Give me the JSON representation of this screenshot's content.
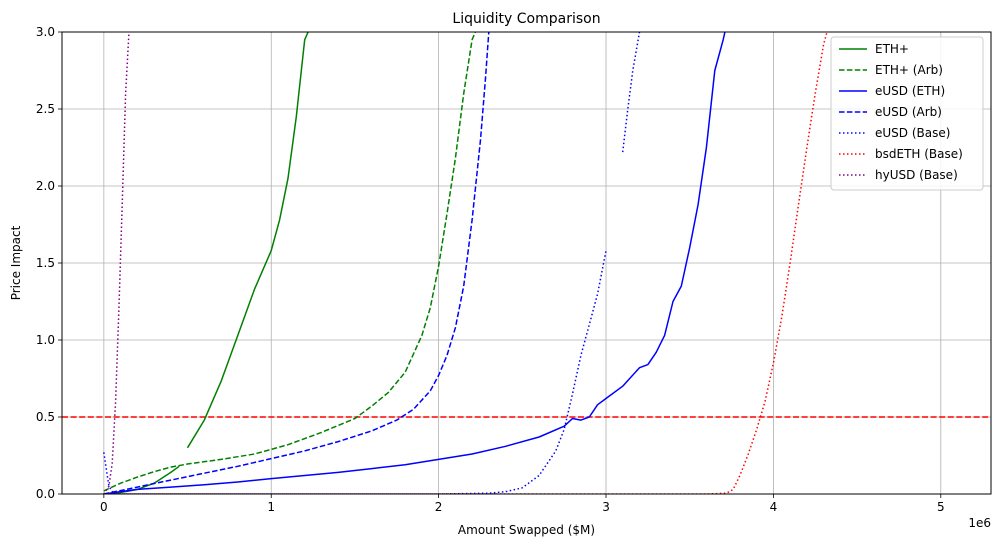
{
  "chart_data": {
    "type": "line",
    "title": "Liquidity Comparison",
    "xlabel": "Amount Swapped ($M)",
    "ylabel": "Price Impact",
    "x_offset_text": "1e6",
    "xlim": [
      -250000,
      5300000
    ],
    "ylim": [
      0,
      3.0
    ],
    "xticks": [
      0,
      1000000,
      2000000,
      3000000,
      4000000,
      5000000
    ],
    "xtick_labels": [
      "0",
      "1",
      "2",
      "3",
      "4",
      "5"
    ],
    "yticks": [
      0,
      0.5,
      1.0,
      1.5,
      2.0,
      2.5,
      3.0
    ],
    "ytick_labels": [
      "0.0",
      "0.5",
      "1.0",
      "1.5",
      "2.0",
      "2.5",
      "3.0"
    ],
    "grid": true,
    "legend_position": "top-right",
    "reference_line": {
      "y": 0.5,
      "color": "#ff0000",
      "style": "dashed"
    },
    "series": [
      {
        "name": "ETH+",
        "color": "#008000",
        "style": "solid",
        "segments": [
          {
            "x": [
              0,
              100000,
              200000,
              300000,
              400000,
              450000
            ],
            "y": [
              0,
              0.01,
              0.03,
              0.07,
              0.14,
              0.18
            ]
          },
          {
            "x": [
              500000,
              600000,
              700000,
              800000,
              900000,
              1000000,
              1050000,
              1100000,
              1150000,
              1200000,
              1220000
            ],
            "y": [
              0.3,
              0.48,
              0.73,
              1.03,
              1.33,
              1.58,
              1.78,
              2.05,
              2.45,
              2.95,
              3.0
            ]
          }
        ]
      },
      {
        "name": "ETH+ (Arb)",
        "color": "#008000",
        "style": "dashed",
        "segments": [
          {
            "x": [
              0,
              100000,
              200000,
              300000,
              400000,
              500000,
              700000,
              900000,
              1100000,
              1300000,
              1500000,
              1600000,
              1700000,
              1800000,
              1900000,
              1950000,
              2000000,
              2050000,
              2100000,
              2150000,
              2200000,
              2220000
            ],
            "y": [
              0.02,
              0.07,
              0.11,
              0.145,
              0.175,
              0.195,
              0.225,
              0.26,
              0.32,
              0.4,
              0.49,
              0.57,
              0.66,
              0.79,
              1.03,
              1.21,
              1.48,
              1.82,
              2.18,
              2.6,
              2.95,
              3.0
            ]
          }
        ]
      },
      {
        "name": "eUSD (ETH)",
        "color": "#0000ff",
        "style": "solid",
        "segments": [
          {
            "x": [
              0,
              200000,
              400000,
              600000,
              800000,
              1000000,
              1200000,
              1400000,
              1600000,
              1800000,
              2000000,
              2200000,
              2400000,
              2600000,
              2750000,
              2800000,
              2850000,
              2900000,
              2950000,
              3000000,
              3100000,
              3200000,
              3250000,
              3300000,
              3350000,
              3400000,
              3450000,
              3500000,
              3550000,
              3600000,
              3650000,
              3700000,
              3710000
            ],
            "y": [
              0,
              0.03,
              0.045,
              0.06,
              0.078,
              0.1,
              0.12,
              0.14,
              0.165,
              0.19,
              0.225,
              0.26,
              0.31,
              0.37,
              0.44,
              0.49,
              0.48,
              0.5,
              0.58,
              0.62,
              0.7,
              0.82,
              0.84,
              0.92,
              1.03,
              1.25,
              1.35,
              1.6,
              1.88,
              2.25,
              2.75,
              2.95,
              3.0
            ]
          }
        ]
      },
      {
        "name": "eUSD (Arb)",
        "color": "#0000ff",
        "style": "dashed",
        "segments": [
          {
            "x": [
              0,
              200000,
              400000,
              600000,
              800000,
              1000000,
              1200000,
              1400000,
              1600000,
              1750000,
              1850000,
              1950000,
              2000000,
              2050000,
              2100000,
              2150000,
              2200000,
              2250000,
              2280000,
              2300000
            ],
            "y": [
              0,
              0.045,
              0.09,
              0.135,
              0.18,
              0.23,
              0.28,
              0.34,
              0.41,
              0.48,
              0.55,
              0.67,
              0.77,
              0.9,
              1.08,
              1.35,
              1.78,
              2.3,
              2.7,
              3.0
            ]
          }
        ]
      },
      {
        "name": "eUSD (Base)",
        "color": "#0000ff",
        "style": "dotted",
        "segments": [
          {
            "x": [
              0,
              30000,
              60000
            ],
            "y": [
              0.27,
              0.05,
              0.0
            ]
          },
          {
            "x": [
              60000,
              500000,
              1000000,
              1500000,
              2000000,
              2300000,
              2400000,
              2500000,
              2600000,
              2700000,
              2750000,
              2800000,
              2850000,
              2900000,
              2950000,
              3000000
            ],
            "y": [
              0.0,
              0.0,
              0.0,
              0.0,
              0.0,
              0.005,
              0.015,
              0.04,
              0.12,
              0.28,
              0.42,
              0.65,
              0.9,
              1.1,
              1.3,
              1.58
            ]
          },
          {
            "x": [
              3100000,
              3130000,
              3160000,
              3200000
            ],
            "y": [
              2.22,
              2.5,
              2.75,
              3.0
            ]
          }
        ]
      },
      {
        "name": "bsdETH (Base)",
        "color": "#ff0000",
        "style": "dotted",
        "segments": [
          {
            "x": [
              0,
              1000000,
              2000000,
              3000000,
              3600000,
              3720000,
              3760000,
              3800000,
              3850000,
              3900000,
              3950000,
              4000000,
              4050000,
              4100000,
              4150000,
              4200000,
              4250000,
              4300000,
              4320000
            ],
            "y": [
              0,
              0,
              0,
              0,
              0,
              0.005,
              0.03,
              0.12,
              0.26,
              0.42,
              0.6,
              0.85,
              1.15,
              1.5,
              1.88,
              2.25,
              2.6,
              2.92,
              3.0
            ]
          }
        ]
      },
      {
        "name": "hyUSD (Base)",
        "color": "#800080",
        "style": "dotted",
        "segments": [
          {
            "x": [
              0,
              30000,
              50000,
              70000,
              90000,
              110000,
              130000,
              150000
            ],
            "y": [
              0,
              0.05,
              0.2,
              0.6,
              1.2,
              1.9,
              2.6,
              3.0
            ]
          }
        ]
      }
    ]
  }
}
